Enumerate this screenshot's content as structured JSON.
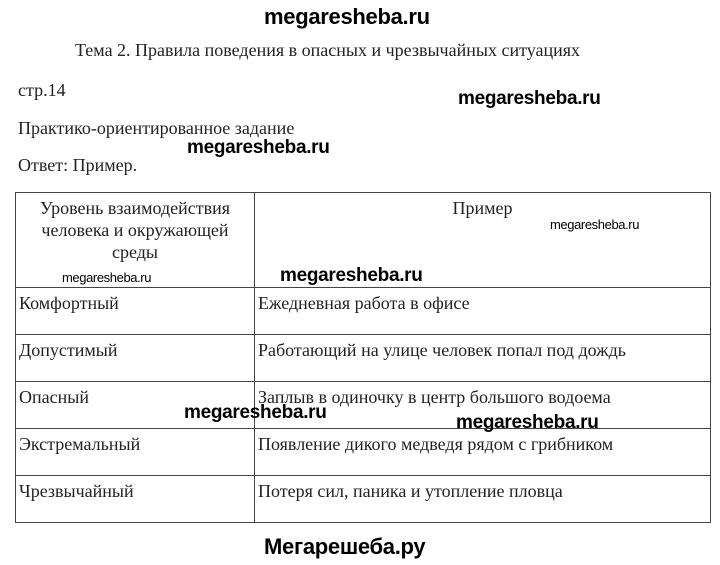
{
  "watermarks": {
    "top": "megaresheba.ru",
    "right1": "megaresheba.ru",
    "left1": "megaresheba.ru",
    "header_small_right": "megaresheba.ru",
    "header_small_left": "megaresheba.ru",
    "header_bold": "megaresheba.ru",
    "mid_left": "megaresheba.ru",
    "mid_right": "megaresheba.ru",
    "bottom": "Мегарешеба.ру"
  },
  "document": {
    "topic": "Тема 2. Правила поведения в опасных и чрезвычайных ситуациях",
    "page": "стр.14",
    "task": "Практико-ориентированное задание",
    "answer": "Ответ: Пример."
  },
  "table": {
    "headers": [
      "Уровень взаимодействия человека и окружающей среды",
      "Пример"
    ],
    "rows": [
      {
        "level": "Комфортный",
        "example": "Ежедневная работа в офисе"
      },
      {
        "level": "Допустимый",
        "example": "Работающий на улице человек попал под дождь"
      },
      {
        "level": "Опасный",
        "example": "Заплыв в одиночку в центр большого водоема"
      },
      {
        "level": "Экстремальный",
        "example": "Появление дикого медведя рядом с грибником"
      },
      {
        "level": "Чрезвычайный",
        "example": "Потеря сил, паника и утопление пловца"
      }
    ]
  }
}
